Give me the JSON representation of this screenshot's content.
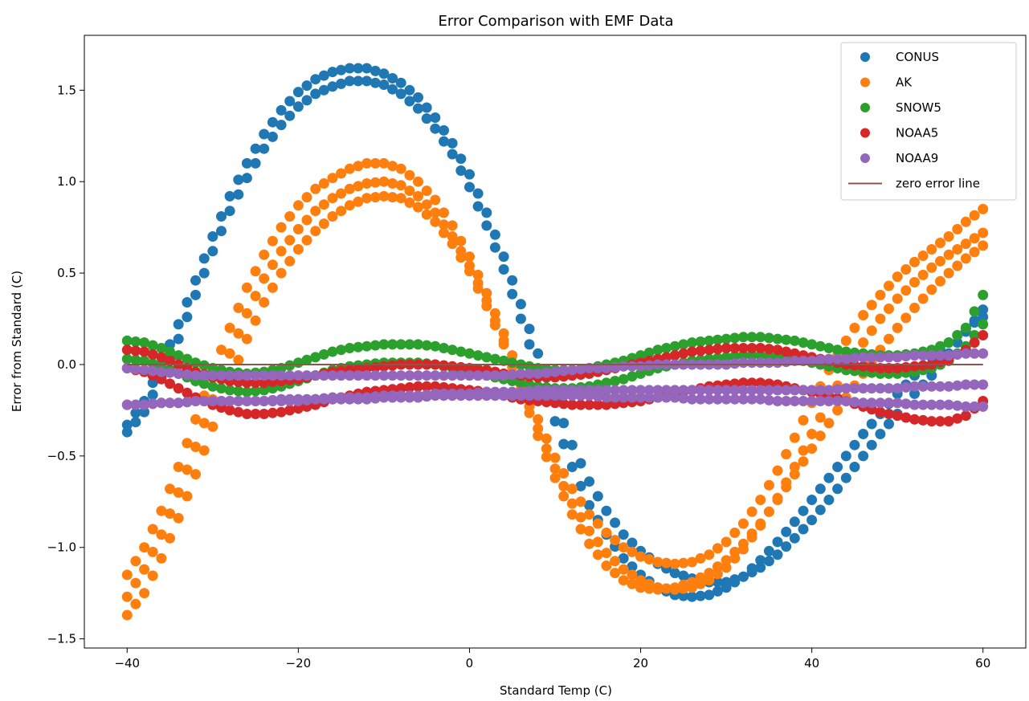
{
  "chart_data": {
    "type": "scatter",
    "title": "Error Comparison with EMF Data",
    "xlabel": "Standard Temp (C)",
    "ylabel": "Error from Standard (C)",
    "xlim": [
      -45,
      65
    ],
    "ylim": [
      -1.55,
      1.8
    ],
    "x_ticks": [
      -40,
      -20,
      0,
      20,
      40,
      60
    ],
    "x_tick_labels": [
      "−40",
      "−20",
      "0",
      "20",
      "40",
      "60"
    ],
    "y_ticks": [
      -1.5,
      -1.0,
      -0.5,
      0.0,
      0.5,
      1.0,
      1.5
    ],
    "y_tick_labels": [
      "−1.5",
      "−1.0",
      "−0.5",
      "0.0",
      "0.5",
      "1.0",
      "1.5"
    ],
    "grid": false,
    "legend_position": "top-right",
    "x": [
      -40,
      -38,
      -36,
      -34,
      -32,
      -30,
      -28,
      -26,
      -24,
      -22,
      -20,
      -18,
      -16,
      -14,
      -12,
      -10,
      -8,
      -6,
      -4,
      -2,
      0,
      2,
      4,
      6,
      8,
      10,
      12,
      14,
      16,
      18,
      20,
      22,
      24,
      26,
      28,
      30,
      32,
      34,
      36,
      38,
      40,
      42,
      44,
      46,
      48,
      50,
      52,
      54,
      56,
      58,
      60
    ],
    "series": [
      {
        "name": "CONUS",
        "color": "#1f77b4",
        "bands": [
          {
            "y": [
              -0.33,
              -0.2,
              0.0,
              0.22,
              0.46,
              0.7,
              0.92,
              1.1,
              1.26,
              1.39,
              1.49,
              1.56,
              1.6,
              1.62,
              1.62,
              1.59,
              1.54,
              1.46,
              1.35,
              1.21,
              1.04,
              0.83,
              0.59,
              0.33,
              0.06,
              -0.2,
              -0.44,
              -0.64,
              -0.8,
              -0.93,
              -1.02,
              -1.09,
              -1.14,
              -1.17,
              -1.19,
              -1.19,
              -1.16,
              -1.11,
              -1.04,
              -0.95,
              -0.85,
              -0.74,
              -0.62,
              -0.5,
              -0.38,
              -0.27,
              -0.16,
              -0.06,
              0.06,
              0.18,
              0.3
            ]
          },
          {
            "y": [
              -0.37,
              -0.26,
              -0.07,
              0.14,
              0.38,
              0.62,
              0.84,
              1.02,
              1.18,
              1.31,
              1.41,
              1.48,
              1.52,
              1.55,
              1.55,
              1.53,
              1.48,
              1.4,
              1.29,
              1.15,
              0.97,
              0.76,
              0.52,
              0.25,
              -0.03,
              -0.31,
              -0.56,
              -0.77,
              -0.93,
              -1.06,
              -1.15,
              -1.22,
              -1.26,
              -1.27,
              -1.26,
              -1.22,
              -1.16,
              -1.07,
              -0.97,
              -0.86,
              -0.74,
              -0.62,
              -0.5,
              -0.38,
              -0.27,
              -0.16,
              -0.06,
              0.04,
              0.12,
              0.2,
              0.26
            ]
          }
        ]
      },
      {
        "name": "AK",
        "color": "#ff7f0e",
        "bands": [
          {
            "y": [
              -1.15,
              -1.0,
              -0.8,
              -0.56,
              -0.3,
              -0.04,
              0.2,
              0.42,
              0.6,
              0.75,
              0.87,
              0.96,
              1.02,
              1.07,
              1.1,
              1.1,
              1.07,
              1.0,
              0.9,
              0.76,
              0.59,
              0.39,
              0.17,
              -0.07,
              -0.3,
              -0.51,
              -0.68,
              -0.82,
              -0.92,
              -1.0,
              -1.05,
              -1.08,
              -1.09,
              -1.08,
              -1.04,
              -0.97,
              -0.87,
              -0.74,
              -0.58,
              -0.4,
              -0.21,
              -0.03,
              0.13,
              0.27,
              0.38,
              0.48,
              0.56,
              0.63,
              0.7,
              0.78,
              0.85
            ]
          },
          {
            "y": [
              -1.27,
              -1.12,
              -0.93,
              -0.7,
              -0.45,
              -0.19,
              0.06,
              0.28,
              0.47,
              0.62,
              0.74,
              0.84,
              0.91,
              0.96,
              0.99,
              1.0,
              0.98,
              0.92,
              0.83,
              0.7,
              0.54,
              0.35,
              0.13,
              -0.11,
              -0.35,
              -0.57,
              -0.76,
              -0.91,
              -1.03,
              -1.12,
              -1.18,
              -1.22,
              -1.23,
              -1.22,
              -1.18,
              -1.11,
              -1.01,
              -0.88,
              -0.73,
              -0.56,
              -0.38,
              -0.2,
              -0.03,
              0.12,
              0.25,
              0.36,
              0.45,
              0.53,
              0.6,
              0.66,
              0.72
            ]
          },
          {
            "y": [
              -1.37,
              -1.25,
              -1.06,
              -0.84,
              -0.6,
              -0.34,
              -0.09,
              0.14,
              0.34,
              0.5,
              0.63,
              0.73,
              0.81,
              0.87,
              0.91,
              0.92,
              0.91,
              0.86,
              0.78,
              0.66,
              0.51,
              0.32,
              0.11,
              -0.14,
              -0.39,
              -0.62,
              -0.82,
              -0.98,
              -1.1,
              -1.18,
              -1.22,
              -1.23,
              -1.22,
              -1.19,
              -1.14,
              -1.07,
              -0.98,
              -0.87,
              -0.74,
              -0.6,
              -0.46,
              -0.32,
              -0.18,
              -0.05,
              0.08,
              0.2,
              0.31,
              0.41,
              0.5,
              0.58,
              0.65
            ]
          }
        ]
      },
      {
        "name": "SNOW5",
        "color": "#2ca02c",
        "bands": [
          {
            "y": [
              0.13,
              0.12,
              0.09,
              0.05,
              0.01,
              -0.02,
              -0.04,
              -0.05,
              -0.04,
              -0.02,
              0.01,
              0.04,
              0.07,
              0.09,
              0.1,
              0.11,
              0.11,
              0.11,
              0.1,
              0.08,
              0.06,
              0.04,
              0.02,
              0.0,
              -0.02,
              -0.03,
              -0.03,
              -0.02,
              0.0,
              0.02,
              0.05,
              0.08,
              0.1,
              0.12,
              0.13,
              0.14,
              0.15,
              0.15,
              0.14,
              0.13,
              0.11,
              0.09,
              0.07,
              0.06,
              0.05,
              0.05,
              0.06,
              0.08,
              0.12,
              0.2,
              0.38
            ]
          },
          {
            "y": [
              0.03,
              0.02,
              -0.01,
              -0.05,
              -0.09,
              -0.12,
              -0.14,
              -0.15,
              -0.14,
              -0.12,
              -0.09,
              -0.06,
              -0.03,
              -0.01,
              0.0,
              0.01,
              0.01,
              0.01,
              0.0,
              -0.02,
              -0.04,
              -0.06,
              -0.08,
              -0.1,
              -0.12,
              -0.13,
              -0.13,
              -0.12,
              -0.1,
              -0.08,
              -0.05,
              -0.02,
              0.0,
              0.02,
              0.03,
              0.04,
              0.05,
              0.05,
              0.04,
              0.03,
              0.01,
              -0.01,
              -0.03,
              -0.04,
              -0.05,
              -0.05,
              -0.04,
              -0.02,
              0.02,
              0.1,
              0.22
            ]
          }
        ]
      },
      {
        "name": "NOAA5",
        "color": "#d62728",
        "bands": [
          {
            "y": [
              0.08,
              0.07,
              0.04,
              0.0,
              -0.04,
              -0.07,
              -0.09,
              -0.1,
              -0.1,
              -0.09,
              -0.08,
              -0.06,
              -0.04,
              -0.03,
              -0.02,
              -0.01,
              0.0,
              0.0,
              0.0,
              -0.01,
              -0.02,
              -0.03,
              -0.05,
              -0.06,
              -0.07,
              -0.07,
              -0.06,
              -0.05,
              -0.03,
              -0.01,
              0.01,
              0.03,
              0.05,
              0.07,
              0.08,
              0.09,
              0.09,
              0.09,
              0.08,
              0.06,
              0.04,
              0.02,
              0.0,
              -0.01,
              -0.02,
              -0.02,
              -0.01,
              0.0,
              0.03,
              0.08,
              0.16
            ]
          },
          {
            "y": [
              -0.02,
              -0.04,
              -0.08,
              -0.13,
              -0.18,
              -0.22,
              -0.25,
              -0.27,
              -0.27,
              -0.26,
              -0.24,
              -0.22,
              -0.19,
              -0.17,
              -0.15,
              -0.14,
              -0.13,
              -0.12,
              -0.12,
              -0.13,
              -0.14,
              -0.15,
              -0.17,
              -0.19,
              -0.2,
              -0.21,
              -0.22,
              -0.22,
              -0.22,
              -0.21,
              -0.2,
              -0.18,
              -0.16,
              -0.14,
              -0.12,
              -0.11,
              -0.1,
              -0.1,
              -0.11,
              -0.13,
              -0.15,
              -0.17,
              -0.2,
              -0.23,
              -0.26,
              -0.28,
              -0.3,
              -0.31,
              -0.31,
              -0.28,
              -0.2
            ]
          }
        ]
      },
      {
        "name": "NOAA9",
        "color": "#9467bd",
        "bands": [
          {
            "y": [
              -0.02,
              -0.03,
              -0.04,
              -0.05,
              -0.06,
              -0.06,
              -0.06,
              -0.06,
              -0.06,
              -0.06,
              -0.06,
              -0.06,
              -0.06,
              -0.06,
              -0.06,
              -0.06,
              -0.06,
              -0.06,
              -0.06,
              -0.06,
              -0.06,
              -0.06,
              -0.06,
              -0.05,
              -0.05,
              -0.04,
              -0.03,
              -0.02,
              -0.02,
              -0.01,
              -0.01,
              0.0,
              0.0,
              0.0,
              0.0,
              0.0,
              0.01,
              0.01,
              0.01,
              0.02,
              0.02,
              0.03,
              0.03,
              0.04,
              0.04,
              0.04,
              0.05,
              0.05,
              0.05,
              0.06,
              0.06
            ]
          },
          {
            "y": [
              -0.22,
              -0.22,
              -0.21,
              -0.21,
              -0.2,
              -0.2,
              -0.2,
              -0.2,
              -0.2,
              -0.19,
              -0.19,
              -0.19,
              -0.18,
              -0.18,
              -0.18,
              -0.17,
              -0.17,
              -0.17,
              -0.16,
              -0.16,
              -0.16,
              -0.15,
              -0.15,
              -0.15,
              -0.14,
              -0.14,
              -0.14,
              -0.14,
              -0.14,
              -0.14,
              -0.14,
              -0.14,
              -0.14,
              -0.14,
              -0.14,
              -0.14,
              -0.14,
              -0.14,
              -0.14,
              -0.14,
              -0.14,
              -0.14,
              -0.13,
              -0.13,
              -0.13,
              -0.13,
              -0.12,
              -0.12,
              -0.12,
              -0.11,
              -0.11
            ]
          },
          {
            "y": [
              -0.22,
              -0.22,
              -0.21,
              -0.21,
              -0.2,
              -0.2,
              -0.2,
              -0.2,
              -0.2,
              -0.2,
              -0.2,
              -0.19,
              -0.19,
              -0.19,
              -0.19,
              -0.18,
              -0.18,
              -0.18,
              -0.17,
              -0.17,
              -0.17,
              -0.17,
              -0.17,
              -0.17,
              -0.17,
              -0.17,
              -0.17,
              -0.17,
              -0.18,
              -0.18,
              -0.18,
              -0.18,
              -0.18,
              -0.19,
              -0.19,
              -0.19,
              -0.19,
              -0.19,
              -0.2,
              -0.2,
              -0.2,
              -0.2,
              -0.2,
              -0.21,
              -0.21,
              -0.21,
              -0.22,
              -0.22,
              -0.22,
              -0.23,
              -0.23
            ]
          }
        ]
      }
    ],
    "reference_line": {
      "name": "zero error line",
      "y": 0.0,
      "x": [
        -40,
        60
      ],
      "color": "#8c564b"
    }
  }
}
